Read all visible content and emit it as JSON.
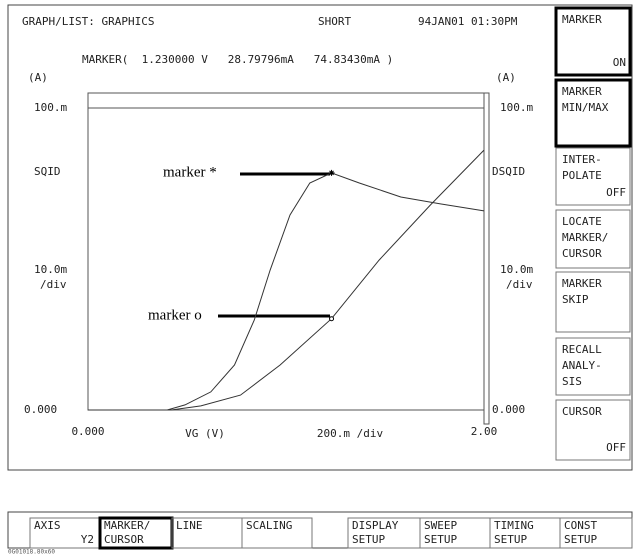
{
  "header": {
    "title": "GRAPH/LIST: GRAPHICS",
    "mode": "SHORT",
    "timestamp": "94JAN01 01:30PM"
  },
  "marker_readout": "MARKER(  1.230000 V   28.79796mA   74.83430mA )",
  "y1_axis": {
    "unit": "(A)",
    "top": "100.m",
    "name": "SQID",
    "scale": "10.0m",
    "per": "/div",
    "bottom": "0.000"
  },
  "y2_axis": {
    "unit": "(A)",
    "top": "100.m",
    "name": "DSQID",
    "scale": "10.0m",
    "per": "/div",
    "bottom": "0.000"
  },
  "x_axis": {
    "min": "0.000",
    "name": "VG (V)",
    "scale": "200.m /div",
    "max": "2.00"
  },
  "plot": {
    "xlim": [
      0,
      2
    ],
    "ylim": [
      0,
      100
    ],
    "curves": [
      {
        "x": [
          0,
          0.4,
          0.49,
          0.62,
          0.74,
          0.84,
          0.92,
          1.02,
          1.12,
          1.23,
          1.37,
          1.58,
          1.78,
          2.0
        ],
        "y": [
          0,
          0,
          1.6,
          5.7,
          14.2,
          28.4,
          44.2,
          61.5,
          71.6,
          74.8,
          71.6,
          67.2,
          65,
          62.8
        ]
      },
      {
        "x": [
          0,
          0.42,
          0.57,
          0.77,
          0.97,
          1.23,
          1.47,
          1.73,
          2.0
        ],
        "y": [
          0,
          0,
          1.3,
          4.7,
          14.2,
          28.8,
          47.3,
          64.7,
          82
        ]
      }
    ]
  },
  "annotations": [
    "marker *",
    "marker o"
  ],
  "side_keys": [
    [
      "MARKER",
      "ON"
    ],
    [
      "MARKER",
      "MIN/MAX"
    ],
    [
      "INTER-",
      "POLATE",
      "OFF"
    ],
    [
      "LOCATE",
      "MARKER/",
      "CURSOR"
    ],
    [
      "MARKER",
      "SKIP"
    ],
    [
      "RECALL",
      "ANALY-",
      "SIS"
    ],
    [
      "CURSOR",
      "OFF"
    ]
  ],
  "bottom_keys": [
    [
      "AXIS",
      "Y2"
    ],
    [
      "MARKER/",
      "CURSOR"
    ],
    [
      "LINE"
    ],
    [
      "SCALING"
    ],
    [
      "DISPLAY",
      "SETUP"
    ],
    [
      "SWEEP",
      "SETUP"
    ],
    [
      "TIMING",
      "SETUP"
    ],
    [
      "CONST",
      "SETUP"
    ]
  ],
  "footnote": "0G01018.80x60"
}
